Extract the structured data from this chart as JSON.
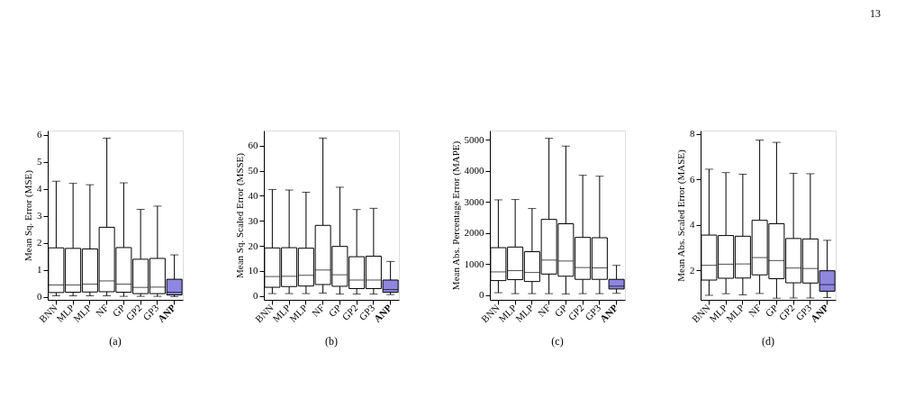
{
  "chart_data": [
    {
      "type": "box",
      "title": "(a)",
      "ylabel": "Mean Sq. Error (MSE)",
      "categories": [
        "BNN",
        "MLP",
        "MLP",
        "NF",
        "GP",
        "GP2",
        "GP3",
        "ANP"
      ],
      "colors": [
        "#ffffff",
        "#ffffff",
        "#ffffff",
        "#ffffff",
        "#ffffff",
        "#ffffff",
        "#ffffff",
        "#8f86e0"
      ],
      "ylim": [
        -0.1,
        6.15
      ],
      "yticks": [
        0,
        1,
        2,
        3,
        4,
        5,
        6
      ],
      "grid": false,
      "boxes": [
        {
          "low": 0.05,
          "q1": 0.17,
          "median": 0.45,
          "q3": 1.82,
          "high": 4.28
        },
        {
          "low": 0.05,
          "q1": 0.18,
          "median": 0.45,
          "q3": 1.8,
          "high": 4.2
        },
        {
          "low": 0.05,
          "q1": 0.19,
          "median": 0.48,
          "q3": 1.78,
          "high": 4.15
        },
        {
          "low": 0.05,
          "q1": 0.2,
          "median": 0.6,
          "q3": 2.58,
          "high": 5.87
        },
        {
          "low": 0.03,
          "q1": 0.18,
          "median": 0.48,
          "q3": 1.83,
          "high": 4.22
        },
        {
          "low": 0.03,
          "q1": 0.13,
          "median": 0.36,
          "q3": 1.4,
          "high": 3.24
        },
        {
          "low": 0.03,
          "q1": 0.13,
          "median": 0.37,
          "q3": 1.43,
          "high": 3.36
        },
        {
          "low": 0.02,
          "q1": 0.08,
          "median": 0.18,
          "q3": 0.66,
          "high": 1.56
        }
      ]
    },
    {
      "type": "box",
      "title": "(b)",
      "ylabel": "Mean Sq. Scaled Error (MSSE)",
      "categories": [
        "BNN",
        "MLP",
        "MLP",
        "NF",
        "GP",
        "GP2",
        "GP3",
        "ANP"
      ],
      "colors": [
        "#ffffff",
        "#ffffff",
        "#ffffff",
        "#ffffff",
        "#ffffff",
        "#ffffff",
        "#ffffff",
        "#8f86e0"
      ],
      "ylim": [
        -1.5,
        66
      ],
      "yticks": [
        0,
        10,
        20,
        30,
        40,
        50,
        60
      ],
      "grid": false,
      "boxes": [
        {
          "low": 1,
          "q1": 3.5,
          "median": 7.8,
          "q3": 19.2,
          "high": 42.5
        },
        {
          "low": 1,
          "q1": 3.8,
          "median": 7.9,
          "q3": 19.3,
          "high": 42.3
        },
        {
          "low": 1,
          "q1": 4,
          "median": 8.3,
          "q3": 19.1,
          "high": 41.4
        },
        {
          "low": 1.2,
          "q1": 4.6,
          "median": 10.4,
          "q3": 28.2,
          "high": 63
        },
        {
          "low": 0.8,
          "q1": 3.9,
          "median": 8.5,
          "q3": 19.8,
          "high": 43.4
        },
        {
          "low": 0.8,
          "q1": 3,
          "median": 6.4,
          "q3": 15.7,
          "high": 34.5
        },
        {
          "low": 0.8,
          "q1": 3,
          "median": 6.4,
          "q3": 15.9,
          "high": 35
        },
        {
          "low": 0.6,
          "q1": 1.5,
          "median": 2.6,
          "q3": 6.4,
          "high": 13.8
        }
      ]
    },
    {
      "type": "box",
      "title": "(c)",
      "ylabel": "Mean Abs. Percentage Error (MAPE)",
      "categories": [
        "BNN",
        "MLP",
        "MLP",
        "NF",
        "GP",
        "GP2",
        "GP3",
        "ANP"
      ],
      "colors": [
        "#ffffff",
        "#ffffff",
        "#ffffff",
        "#ffffff",
        "#ffffff",
        "#ffffff",
        "#ffffff",
        "#8f86e0"
      ],
      "ylim": [
        -150,
        5300
      ],
      "yticks": [
        0,
        1000,
        2000,
        3000,
        4000,
        5000
      ],
      "grid": false,
      "boxes": [
        {
          "low": 80,
          "q1": 470,
          "median": 750,
          "q3": 1530,
          "high": 3070
        },
        {
          "low": 50,
          "q1": 500,
          "median": 790,
          "q3": 1550,
          "high": 3080
        },
        {
          "low": 50,
          "q1": 440,
          "median": 730,
          "q3": 1400,
          "high": 2790
        },
        {
          "low": 50,
          "q1": 680,
          "median": 1130,
          "q3": 2440,
          "high": 5050
        },
        {
          "low": 40,
          "q1": 610,
          "median": 1100,
          "q3": 2300,
          "high": 4800
        },
        {
          "low": 50,
          "q1": 510,
          "median": 890,
          "q3": 1860,
          "high": 3860
        },
        {
          "low": 50,
          "q1": 510,
          "median": 880,
          "q3": 1850,
          "high": 3830
        },
        {
          "low": 60,
          "q1": 200,
          "median": 290,
          "q3": 510,
          "high": 960
        }
      ]
    },
    {
      "type": "box",
      "title": "(d)",
      "ylabel": "Mean Abs. Scaled Error (MASE)",
      "categories": [
        "BNN",
        "MLP",
        "MLP",
        "NF",
        "GP",
        "GP2",
        "GP3",
        "ANP"
      ],
      "colors": [
        "#ffffff",
        "#ffffff",
        "#ffffff",
        "#ffffff",
        "#ffffff",
        "#ffffff",
        "#ffffff",
        "#8f86e0"
      ],
      "ylim": [
        0.7,
        8.15
      ],
      "yticks": [
        2,
        4,
        6,
        8
      ],
      "grid": false,
      "annotations": [
        "13"
      ],
      "boxes": [
        {
          "low": 0.9,
          "q1": 1.57,
          "median": 2.22,
          "q3": 3.55,
          "high": 6.45
        },
        {
          "low": 0.97,
          "q1": 1.65,
          "median": 2.27,
          "q3": 3.53,
          "high": 6.3
        },
        {
          "low": 0.92,
          "q1": 1.66,
          "median": 2.28,
          "q3": 3.5,
          "high": 6.23
        },
        {
          "low": 0.98,
          "q1": 1.8,
          "median": 2.56,
          "q3": 4.2,
          "high": 7.73
        },
        {
          "low": 0.77,
          "q1": 1.63,
          "median": 2.43,
          "q3": 4.05,
          "high": 7.63
        },
        {
          "low": 0.78,
          "q1": 1.45,
          "median": 2.1,
          "q3": 3.4,
          "high": 6.27
        },
        {
          "low": 0.78,
          "q1": 1.44,
          "median": 2.08,
          "q3": 3.38,
          "high": 6.25
        },
        {
          "low": 0.8,
          "q1": 1.08,
          "median": 1.37,
          "q3": 1.98,
          "high": 3.32
        }
      ]
    }
  ]
}
